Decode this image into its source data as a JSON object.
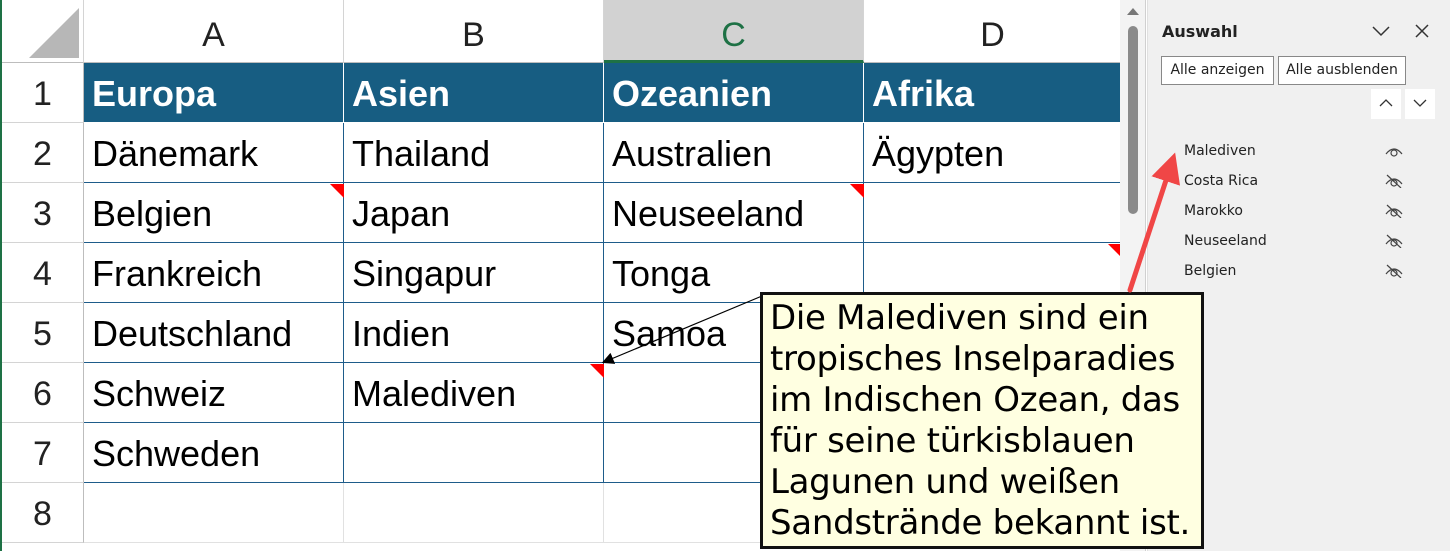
{
  "columns": [
    "A",
    "B",
    "C",
    "D"
  ],
  "rows": [
    "1",
    "2",
    "3",
    "4",
    "5",
    "6",
    "7",
    "8"
  ],
  "cells": [
    [
      "Europa",
      "Asien",
      "Ozeanien",
      "Afrika"
    ],
    [
      "Dänemark",
      "Thailand",
      "Australien",
      "Ägypten"
    ],
    [
      "Belgien",
      "Japan",
      "Neuseeland",
      ""
    ],
    [
      "Frankreich",
      "Singapur",
      "Tonga",
      ""
    ],
    [
      "Deutschland",
      "Indien",
      "Samoa",
      ""
    ],
    [
      "Schweiz",
      "Malediven",
      "",
      ""
    ],
    [
      "Schweden",
      "",
      "",
      ""
    ],
    [
      "",
      "",
      "",
      ""
    ]
  ],
  "comment": {
    "lines": [
      "Die Malediven sind ein",
      "tropisches Inselparadies",
      "im Indischen Ozean, das",
      "für seine türkisblauen",
      "Lagunen und weißen",
      "Sandstrände bekannt ist."
    ]
  },
  "panel": {
    "title": "Auswahl",
    "show_all": "Alle anzeigen",
    "hide_all": "Alle ausblenden",
    "items": [
      {
        "label": "Malediven",
        "visible": true
      },
      {
        "label": "Costa Rica",
        "visible": false
      },
      {
        "label": "Marokko",
        "visible": false
      },
      {
        "label": "Neuseeland",
        "visible": false
      },
      {
        "label": "Belgien",
        "visible": false
      }
    ]
  },
  "colors": {
    "header_fill": "#175d82",
    "comment_fill": "#ffffe1",
    "annotation_arrow": "#f04646",
    "selected_column": "C"
  }
}
